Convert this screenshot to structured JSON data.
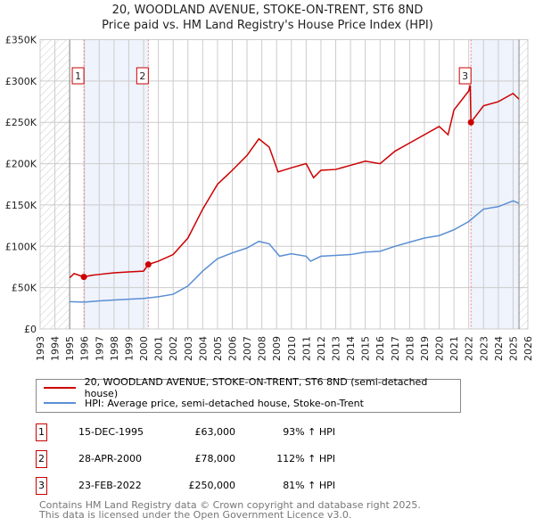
{
  "title": "20, WOODLAND AVENUE, STOKE-ON-TRENT, ST6 8ND",
  "subtitle": "Price paid vs. HM Land Registry's House Price Index (HPI)",
  "chart_data": {
    "type": "line",
    "xlim": [
      1993,
      2026
    ],
    "ylim": [
      0,
      350000
    ],
    "x_ticks": [
      "1993",
      "1994",
      "1995",
      "1996",
      "1997",
      "1998",
      "1999",
      "2000",
      "2001",
      "2002",
      "2003",
      "2004",
      "2005",
      "2006",
      "2007",
      "2008",
      "2009",
      "2010",
      "2011",
      "2012",
      "2013",
      "2014",
      "2015",
      "2016",
      "2017",
      "2018",
      "2019",
      "2020",
      "2021",
      "2022",
      "2023",
      "2024",
      "2025",
      "2026"
    ],
    "y_ticks": [
      {
        "v": 0,
        "label": "£0"
      },
      {
        "v": 50000,
        "label": "£50K"
      },
      {
        "v": 100000,
        "label": "£100K"
      },
      {
        "v": 150000,
        "label": "£150K"
      },
      {
        "v": 200000,
        "label": "£200K"
      },
      {
        "v": 250000,
        "label": "£250K"
      },
      {
        "v": 300000,
        "label": "£300K"
      },
      {
        "v": 350000,
        "label": "£350K"
      }
    ],
    "series": [
      {
        "name": "20, WOODLAND AVENUE, STOKE-ON-TRENT, ST6 8ND (semi-detached house)",
        "color": "#cc0000",
        "x": [
          1995,
          1995.3,
          1995.96,
          1996.5,
          1997,
          1998,
          1999,
          2000,
          2000.32,
          2001,
          2002,
          2003,
          2004,
          2005,
          2006,
          2007,
          2007.8,
          2008.5,
          2009.1,
          2010,
          2011,
          2011.5,
          2012,
          2013,
          2014,
          2015,
          2016,
          2017,
          2018,
          2019,
          2020,
          2020.6,
          2021,
          2022,
          2022.1,
          2022.15,
          2023,
          2024,
          2025,
          2025.4
        ],
        "y": [
          62000,
          67000,
          63000,
          65000,
          66000,
          68000,
          69000,
          70000,
          78000,
          82000,
          90000,
          110000,
          145000,
          175000,
          192000,
          210000,
          230000,
          220000,
          190000,
          195000,
          200000,
          183000,
          192000,
          193000,
          198000,
          203000,
          200000,
          215000,
          225000,
          235000,
          245000,
          235000,
          265000,
          288000,
          295000,
          250000,
          270000,
          275000,
          285000,
          278000
        ]
      },
      {
        "name": "HPI: Average price, semi-detached house, Stoke-on-Trent",
        "color": "#5b8fd4",
        "x": [
          1995,
          1996,
          1997,
          1998,
          1999,
          2000,
          2001,
          2002,
          2003,
          2004,
          2005,
          2006,
          2007,
          2007.8,
          2008.5,
          2009.2,
          2010,
          2011,
          2011.3,
          2012,
          2013,
          2014,
          2015,
          2016,
          2017,
          2018,
          2019,
          2020,
          2021,
          2022,
          2023,
          2024,
          2025,
          2025.4
        ],
        "y": [
          33000,
          32500,
          34000,
          35000,
          36000,
          37000,
          39000,
          42000,
          52000,
          70000,
          85000,
          92000,
          98000,
          106000,
          103000,
          88000,
          91000,
          88000,
          82000,
          88000,
          89000,
          90000,
          93000,
          94000,
          100000,
          105000,
          110000,
          113000,
          120000,
          130000,
          145000,
          148000,
          155000,
          152000
        ]
      }
    ],
    "sales": [
      {
        "id": "1",
        "x": 1995.96,
        "y": 63000
      },
      {
        "id": "2",
        "x": 2000.32,
        "y": 78000
      },
      {
        "id": "3",
        "x": 2022.15,
        "y": 250000
      }
    ],
    "legend": [
      "20, WOODLAND AVENUE, STOKE-ON-TRENT, ST6 8ND (semi-detached house)",
      "HPI: Average price, semi-detached house, Stoke-on-Trent"
    ]
  },
  "table": [
    {
      "id": "1",
      "date": "15-DEC-1995",
      "price": "£63,000",
      "hpi": "93% ↑ HPI"
    },
    {
      "id": "2",
      "date": "28-APR-2000",
      "price": "£78,000",
      "hpi": "112% ↑ HPI"
    },
    {
      "id": "3",
      "date": "23-FEB-2022",
      "price": "£250,000",
      "hpi": "81% ↑ HPI"
    }
  ],
  "footer1": "Contains HM Land Registry data © Crown copyright and database right 2025.",
  "footer2": "This data is licensed under the Open Government Licence v3.0."
}
